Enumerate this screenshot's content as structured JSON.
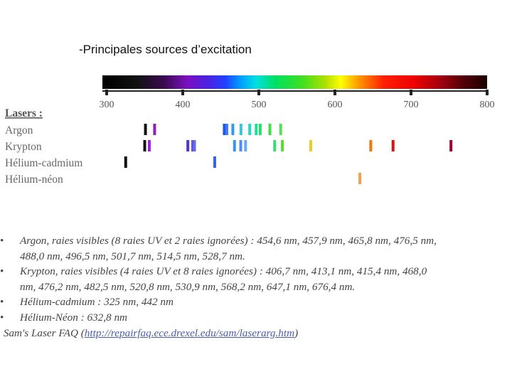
{
  "title": "-Principales sources d’excitation",
  "chart_data": {
    "type": "spectral-lines",
    "x_axis": {
      "min": 300,
      "max": 800,
      "ticks": [
        300,
        400,
        500,
        600,
        700,
        800
      ],
      "tick_labels": [
        "300",
        "400",
        "500",
        "600",
        "700",
        "800"
      ]
    },
    "legend_title": "Lasers :",
    "series": [
      {
        "name": "Argon",
        "lines": [
          {
            "nm": 351,
            "color": "#111111"
          },
          {
            "nm": 363,
            "color": "#8a1fc4"
          },
          {
            "nm": 454.6,
            "color": "#2255ee"
          },
          {
            "nm": 457.9,
            "color": "#4477ff"
          },
          {
            "nm": 465.8,
            "color": "#3399ee"
          },
          {
            "nm": 476.5,
            "color": "#33c8dd"
          },
          {
            "nm": 488.0,
            "color": "#22d8cc"
          },
          {
            "nm": 496.5,
            "color": "#22dd99"
          },
          {
            "nm": 501.7,
            "color": "#22e066"
          },
          {
            "nm": 514.5,
            "color": "#44dd44"
          },
          {
            "nm": 528.7,
            "color": "#55e055"
          }
        ]
      },
      {
        "name": "Krypton",
        "lines": [
          {
            "nm": 350,
            "color": "#111111"
          },
          {
            "nm": 356,
            "color": "#9922dd"
          },
          {
            "nm": 406.7,
            "color": "#5533cc"
          },
          {
            "nm": 413.1,
            "color": "#5555dd"
          },
          {
            "nm": 415.4,
            "color": "#6666ee"
          },
          {
            "nm": 468.0,
            "color": "#3399ee"
          },
          {
            "nm": 476.2,
            "color": "#5588ff"
          },
          {
            "nm": 482.5,
            "color": "#66aaff"
          },
          {
            "nm": 520.8,
            "color": "#33dd77"
          },
          {
            "nm": 530.9,
            "color": "#55dd33"
          },
          {
            "nm": 568.2,
            "color": "#eecc22"
          },
          {
            "nm": 647.1,
            "color": "#ee7711"
          },
          {
            "nm": 676.4,
            "color": "#dd1111"
          },
          {
            "nm": 752.5,
            "color": "#990033"
          }
        ]
      },
      {
        "name": "Hélium-cadmium",
        "lines": [
          {
            "nm": 325,
            "color": "#111111"
          },
          {
            "nm": 442,
            "color": "#3366dd"
          }
        ]
      },
      {
        "name": "Hélium-néon",
        "lines": [
          {
            "nm": 632.8,
            "color": "#f0a050"
          }
        ]
      }
    ]
  },
  "notes": {
    "items": [
      {
        "bullet": "•",
        "lines": [
          "Argon, raies visibles (8 raies UV et 2 raies ignorées)  : 454,6 nm, 457,9 nm, 465,8 nm, 476,5 nm,",
          "488,0 nm, 496,5 nm, 501,7 nm, 514,5 nm, 528,7 nm."
        ]
      },
      {
        "bullet": "•",
        "lines": [
          "Krypton, raies visibles (4 raies UV et 8 raies ignorées) : 406,7 nm, 413,1 nm, 415,4 nm, 468,0",
          "nm, 476,2 nm, 482,5 nm, 520,8 nm, 530,9 nm, 568,2 nm, 647,1 nm, 676,4 nm."
        ]
      },
      {
        "bullet": "•",
        "lines": [
          "Hélium-cadmium : 325 nm, 442 nm"
        ]
      },
      {
        "bullet": "•",
        "lines": [
          "Hélium-Néon : 632,8 nm"
        ]
      }
    ],
    "source_prefix": ": Sam's Laser FAQ (",
    "source_link": "http://repairfaq.ece.drexel.edu/sam/laserarg.htm",
    "source_suffix": ")"
  }
}
